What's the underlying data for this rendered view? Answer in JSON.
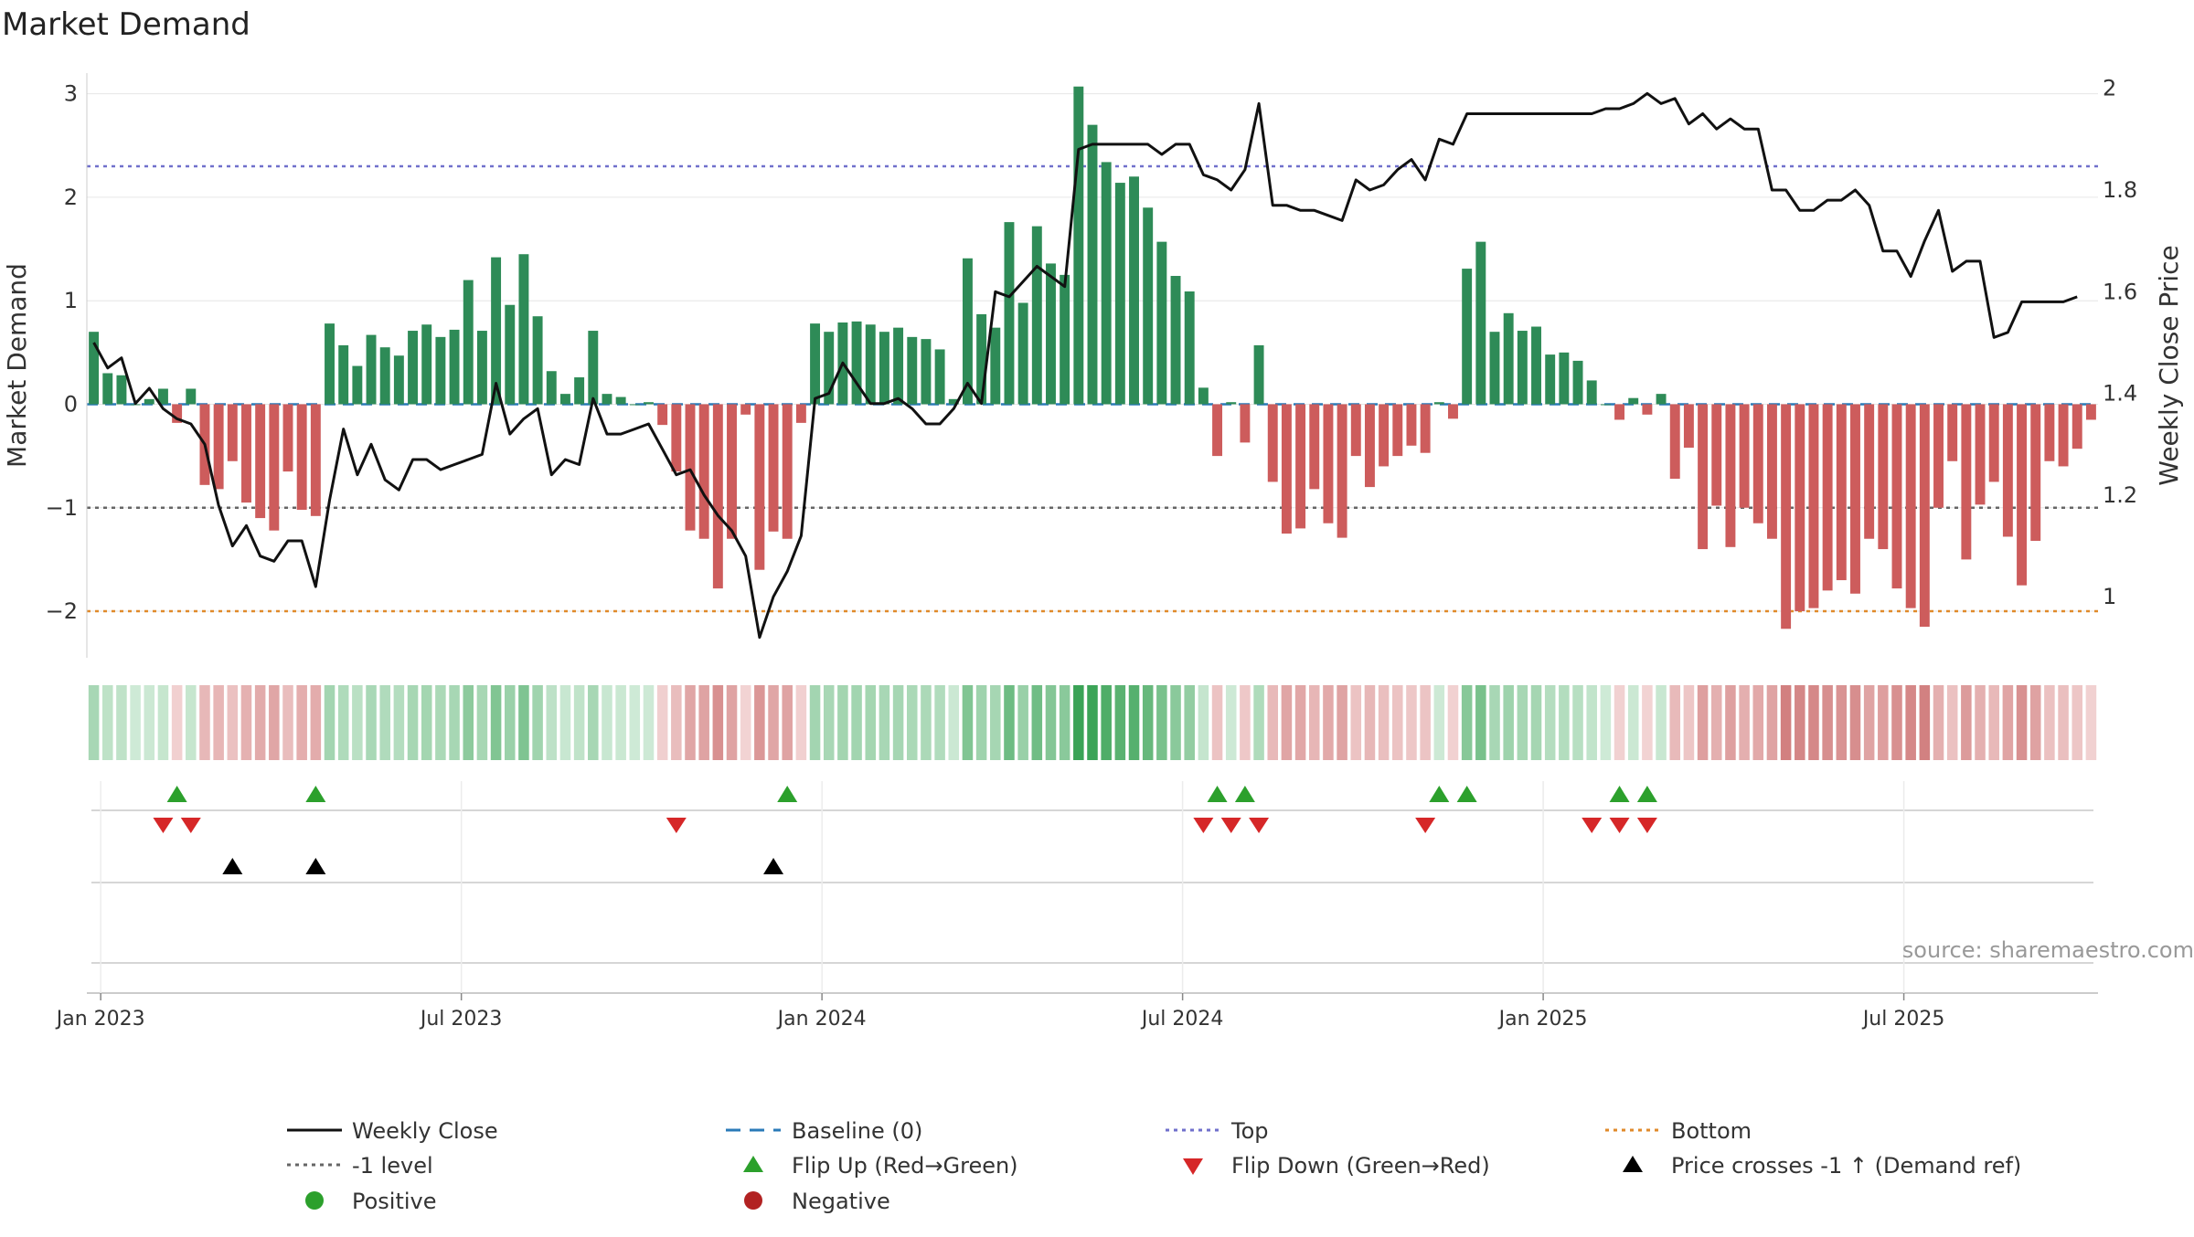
{
  "chart_data": {
    "type": "bar",
    "title": "Market Demand",
    "ylabel": "Market Demand",
    "y2label": "Weekly Close Price",
    "ylim": [
      -2.45,
      3.2
    ],
    "y2lim": [
      0.88,
      2.03
    ],
    "yticks": [
      "−2",
      "−1",
      "0",
      "1",
      "2",
      "3"
    ],
    "ytick_values": [
      -2,
      -1,
      0,
      1,
      2,
      3
    ],
    "y2ticks": [
      "1",
      "1.2",
      "1.4",
      "1.6",
      "1.8",
      "2"
    ],
    "y2tick_values": [
      1.0,
      1.2,
      1.4,
      1.6,
      1.8,
      2.0
    ],
    "xticks": [
      "Jan 2023",
      "Jul 2023",
      "Jan 2024",
      "Jul 2024",
      "Jan 2025",
      "Jul 2025"
    ],
    "xtick_weeks": [
      1,
      27,
      53,
      79,
      105,
      131
    ],
    "levels": {
      "top": 2.3,
      "bottom": -2.0,
      "minus_one": -1.0,
      "baseline": 0
    },
    "demand": [
      0.7,
      0.3,
      0.28,
      0.0,
      0.05,
      0.15,
      -0.18,
      0.15,
      -0.78,
      -0.82,
      -0.55,
      -0.95,
      -1.1,
      -1.22,
      -0.65,
      -1.02,
      -1.08,
      0.78,
      0.57,
      0.37,
      0.67,
      0.55,
      0.47,
      0.71,
      0.77,
      0.65,
      0.72,
      1.2,
      0.71,
      1.42,
      0.96,
      1.45,
      0.85,
      0.32,
      0.1,
      0.26,
      0.71,
      0.1,
      0.07,
      0.0,
      0.02,
      -0.2,
      -0.65,
      -1.22,
      -1.3,
      -1.78,
      -1.3,
      -0.1,
      -1.6,
      -1.23,
      -1.3,
      -0.18,
      0.78,
      0.7,
      0.79,
      0.8,
      0.77,
      0.7,
      0.74,
      0.65,
      0.63,
      0.53,
      0.05,
      1.41,
      0.87,
      0.74,
      1.76,
      0.98,
      1.72,
      1.36,
      1.25,
      3.07,
      2.7,
      2.34,
      2.14,
      2.2,
      1.9,
      1.57,
      1.24,
      1.09,
      0.16,
      -0.5,
      0.02,
      -0.37,
      0.57,
      -0.75,
      -1.25,
      -1.2,
      -0.82,
      -1.15,
      -1.29,
      -0.5,
      -0.8,
      -0.6,
      -0.5,
      -0.4,
      -0.47,
      0.02,
      -0.14,
      1.31,
      1.57,
      0.7,
      0.88,
      0.71,
      0.75,
      0.48,
      0.5,
      0.42,
      0.23,
      0.0,
      -0.15,
      0.06,
      -0.1,
      0.1,
      -0.72,
      -0.42,
      -1.4,
      -0.98,
      -1.38,
      -1.0,
      -1.15,
      -1.3,
      -2.17,
      -2.0,
      -1.97,
      -1.8,
      -1.7,
      -1.83,
      -1.3,
      -1.4,
      -1.78,
      -1.97,
      -2.15,
      -1.0,
      -0.55,
      -1.5,
      -0.97,
      -0.75,
      -1.28,
      -1.75,
      -1.32,
      -0.55,
      -0.6,
      -0.43,
      -0.15
    ],
    "close": [
      1.5,
      1.45,
      1.47,
      1.38,
      1.41,
      1.37,
      1.35,
      1.34,
      1.3,
      1.18,
      1.1,
      1.14,
      1.08,
      1.07,
      1.11,
      1.11,
      1.02,
      1.19,
      1.33,
      1.24,
      1.3,
      1.23,
      1.21,
      1.27,
      1.27,
      1.25,
      1.26,
      1.27,
      1.28,
      1.42,
      1.32,
      1.35,
      1.37,
      1.24,
      1.27,
      1.26,
      1.39,
      1.32,
      1.32,
      1.33,
      1.34,
      1.29,
      1.24,
      1.25,
      1.2,
      1.16,
      1.13,
      1.08,
      0.92,
      1.0,
      1.05,
      1.12,
      1.39,
      1.4,
      1.46,
      1.42,
      1.38,
      1.38,
      1.39,
      1.37,
      1.34,
      1.34,
      1.37,
      1.42,
      1.38,
      1.6,
      1.59,
      1.62,
      1.65,
      1.63,
      1.61,
      1.88,
      1.89,
      1.89,
      1.89,
      1.89,
      1.89,
      1.87,
      1.89,
      1.89,
      1.83,
      1.82,
      1.8,
      1.84,
      1.97,
      1.77,
      1.77,
      1.76,
      1.76,
      1.75,
      1.74,
      1.82,
      1.8,
      1.81,
      1.84,
      1.86,
      1.82,
      1.9,
      1.89,
      1.95,
      1.95,
      1.95,
      1.95,
      1.95,
      1.95,
      1.95,
      1.95,
      1.95,
      1.95,
      1.96,
      1.96,
      1.97,
      1.99,
      1.97,
      1.98,
      1.93,
      1.95,
      1.92,
      1.94,
      1.92,
      1.92,
      1.8,
      1.8,
      1.76,
      1.76,
      1.78,
      1.78,
      1.8,
      1.77,
      1.68,
      1.68,
      1.63,
      1.7,
      1.76,
      1.64,
      1.66,
      1.66,
      1.51,
      1.52,
      1.58,
      1.58,
      1.58,
      1.58,
      1.59
    ],
    "markers": {
      "flip_up_weeks": [
        6,
        16,
        50,
        81,
        83,
        97,
        99,
        110,
        112
      ],
      "flip_down_weeks": [
        5,
        7,
        42,
        80,
        82,
        84,
        96,
        108,
        110,
        112
      ],
      "price_cross_weeks": [
        10,
        16,
        49
      ]
    },
    "legend_position": "bottom",
    "legend": {
      "weekly_close": "Weekly Close",
      "baseline": "Baseline (0)",
      "top": "Top",
      "bottom": "Bottom",
      "minus_one": "-1 level",
      "flip_up": "Flip Up (Red→Green)",
      "flip_down": "Flip Down (Green→Red)",
      "price_cross": "Price crosses -1 ↑ (Demand ref)",
      "positive": "Positive",
      "negative": "Negative"
    },
    "source": "source: sharemaestro.com",
    "colors": {
      "positive_bar": "#2e8b57",
      "negative_bar": "#cd5c5c",
      "close_line": "#111111",
      "baseline": "#2a7ab8",
      "top": "#7070cc",
      "bottom": "#e08a2a",
      "minus_one": "#666666",
      "flip_up": "#2ca02c",
      "flip_down": "#d62728",
      "price_cross": "#000000",
      "positive_dot": "#2ca02c",
      "negative_dot": "#b22222"
    }
  }
}
